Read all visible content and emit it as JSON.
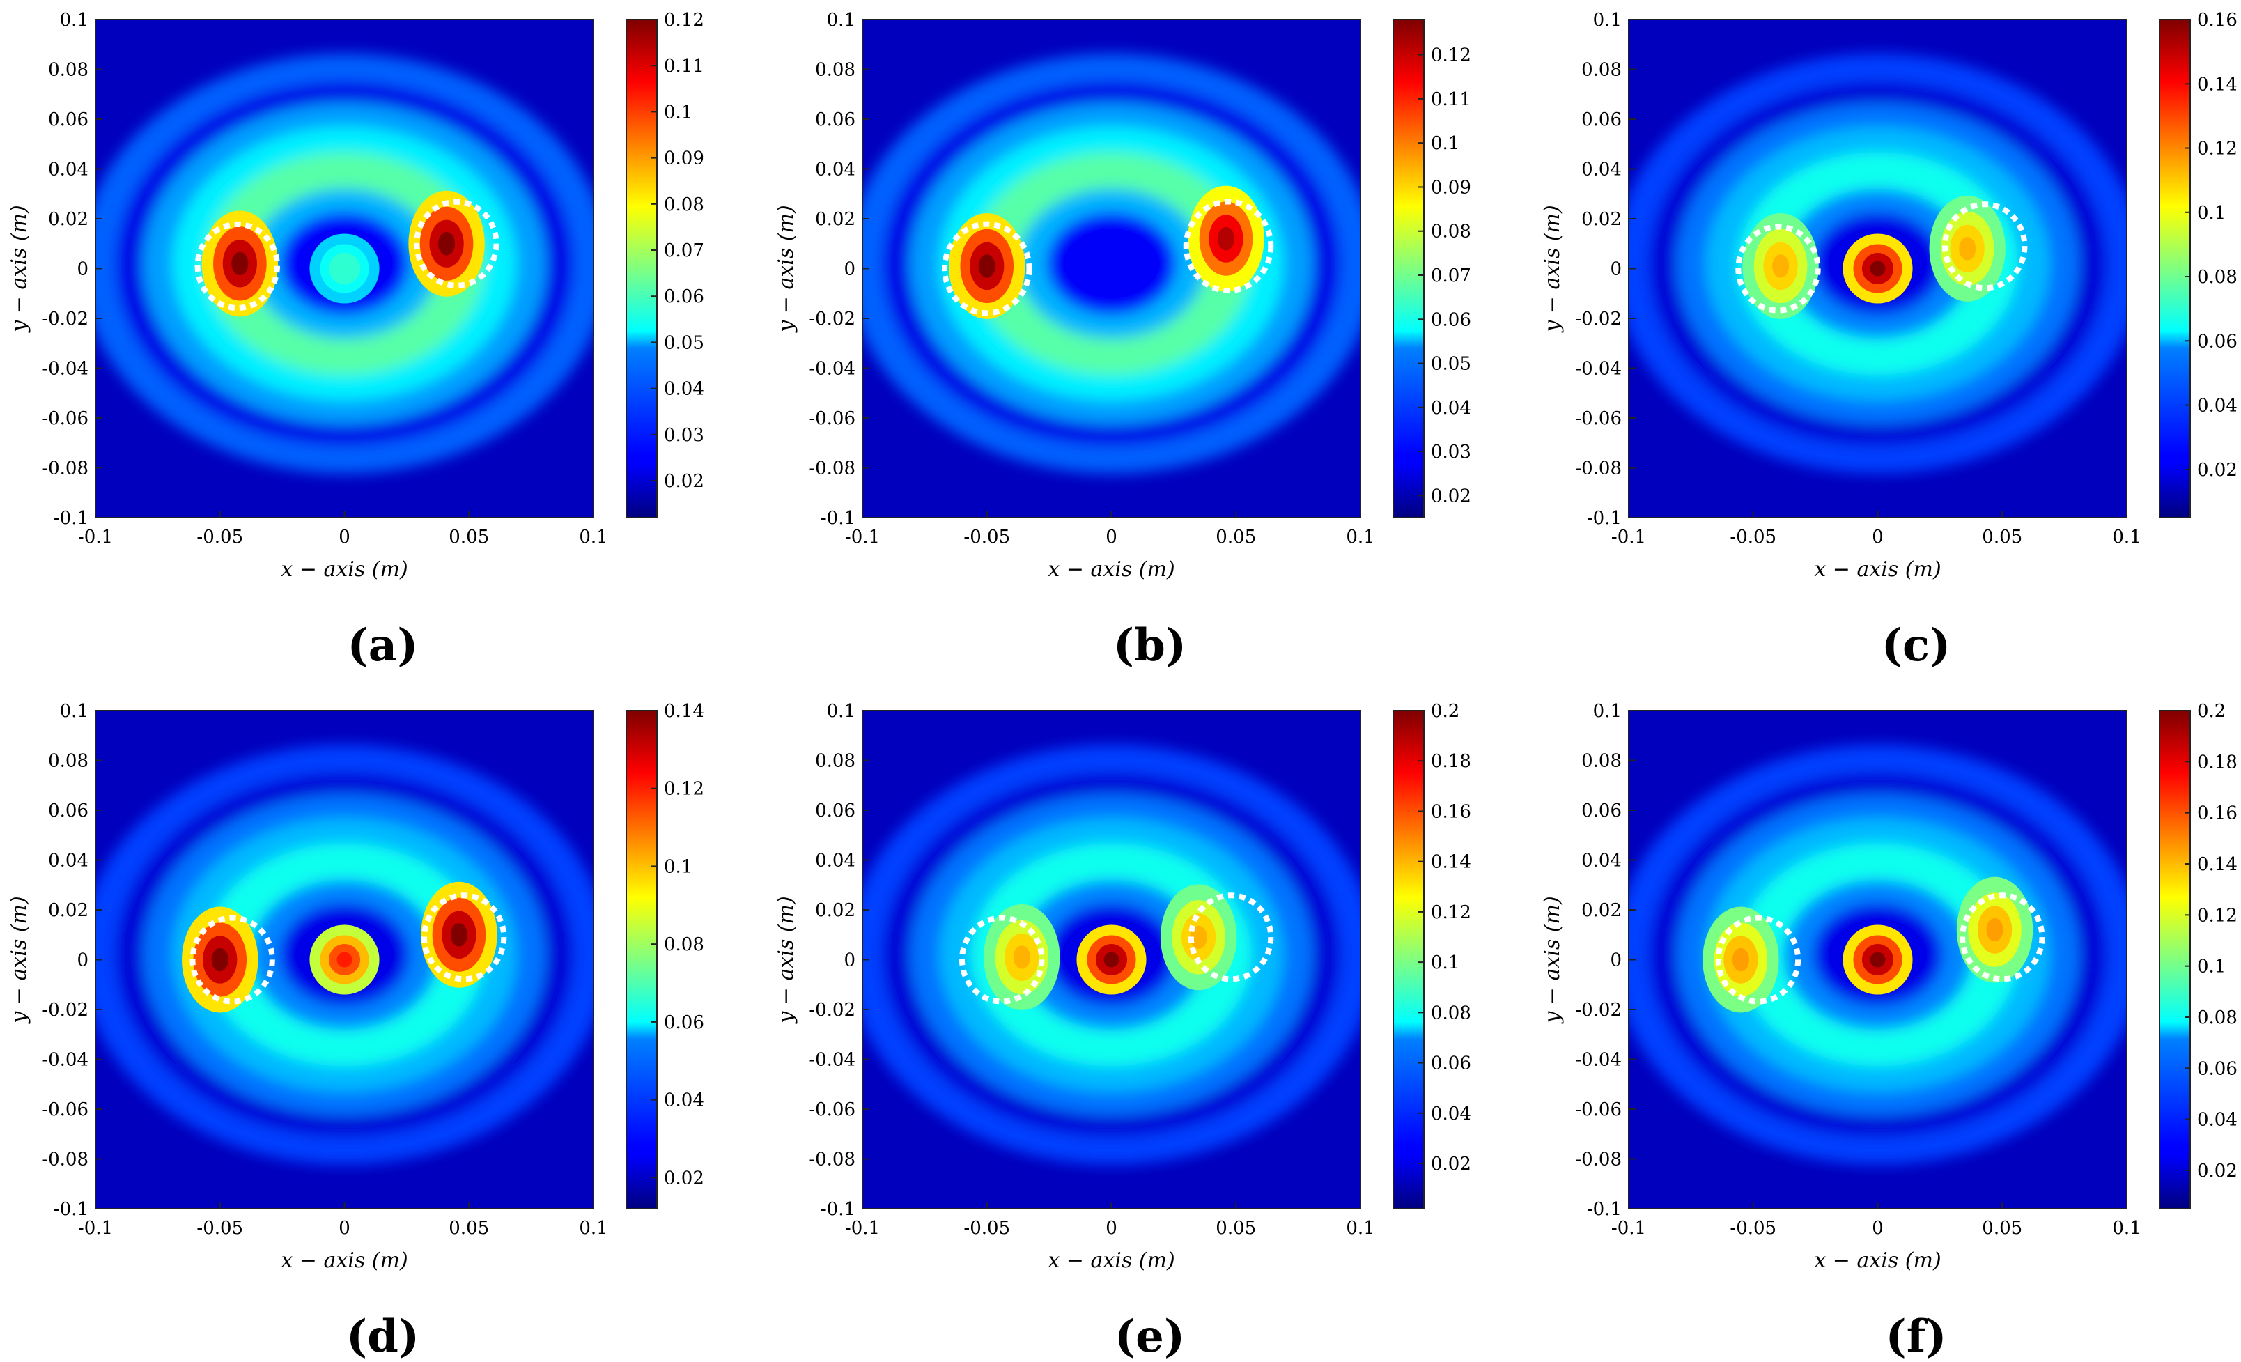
{
  "chart_data": [
    {
      "type": "heatmap",
      "panel_label": "(a)",
      "xlabel": "x − axis (m)",
      "ylabel": "y − axis (m)",
      "xlim": [
        -0.1,
        0.1
      ],
      "ylim": [
        -0.1,
        0.1
      ],
      "x_ticks": [
        "-0.1",
        "-0.05",
        "0",
        "0.05",
        "0.1"
      ],
      "y_ticks": [
        "0.1",
        "0.08",
        "0.06",
        "0.04",
        "0.02",
        "0",
        "-0.02",
        "-0.04",
        "-0.06",
        "-0.08",
        "-0.1"
      ],
      "colorbar": {
        "min": 0.012,
        "max": 0.12,
        "ticks": [
          "0.12",
          "0.11",
          "0.1",
          "0.09",
          "0.08",
          "0.07",
          "0.06",
          "0.05",
          "0.04",
          "0.03",
          "0.02"
        ]
      },
      "markers": [
        {
          "x": -0.043,
          "y": 0.001,
          "r": 0.016
        },
        {
          "x": 0.045,
          "y": 0.01,
          "r": 0.016
        }
      ],
      "hotspots": [
        {
          "x": -0.042,
          "y": 0.002,
          "level": 1.0
        },
        {
          "x": 0.041,
          "y": 0.01,
          "level": 1.0
        },
        {
          "x": 0.0,
          "y": 0.0,
          "level": 0.42
        }
      ]
    },
    {
      "type": "heatmap",
      "panel_label": "(b)",
      "xlabel": "x − axis (m)",
      "ylabel": "y − axis (m)",
      "xlim": [
        -0.1,
        0.1
      ],
      "ylim": [
        -0.1,
        0.1
      ],
      "x_ticks": [
        "-0.1",
        "-0.05",
        "0",
        "0.05",
        "0.1"
      ],
      "y_ticks": [
        "0.1",
        "0.08",
        "0.06",
        "0.04",
        "0.02",
        "0",
        "-0.02",
        "-0.04",
        "-0.06",
        "-0.08",
        "-0.1"
      ],
      "colorbar": {
        "min": 0.015,
        "max": 0.128,
        "ticks": [
          "0.12",
          "0.11",
          "0.1",
          "0.09",
          "0.08",
          "0.07",
          "0.06",
          "0.05",
          "0.04",
          "0.03",
          "0.02"
        ]
      },
      "markers": [
        {
          "x": -0.05,
          "y": 0.0,
          "r": 0.017
        },
        {
          "x": 0.047,
          "y": 0.009,
          "r": 0.017
        }
      ],
      "hotspots": [
        {
          "x": -0.05,
          "y": 0.001,
          "level": 1.0
        },
        {
          "x": 0.046,
          "y": 0.012,
          "level": 0.95
        }
      ]
    },
    {
      "type": "heatmap",
      "panel_label": "(c)",
      "xlabel": "x − axis (m)",
      "ylabel": "y − axis (m)",
      "xlim": [
        -0.1,
        0.1
      ],
      "ylim": [
        -0.1,
        0.1
      ],
      "x_ticks": [
        "-0.1",
        "-0.05",
        "0",
        "0.05",
        "0.1"
      ],
      "y_ticks": [
        "0.1",
        "0.08",
        "0.06",
        "0.04",
        "0.02",
        "0",
        "-0.02",
        "-0.04",
        "-0.06",
        "-0.08",
        "-0.1"
      ],
      "colorbar": {
        "min": 0.005,
        "max": 0.16,
        "ticks": [
          "0.16",
          "0.14",
          "0.12",
          "0.1",
          "0.08",
          "0.06",
          "0.04",
          "0.02"
        ]
      },
      "markers": [
        {
          "x": -0.04,
          "y": 0.0,
          "r": 0.016
        },
        {
          "x": 0.043,
          "y": 0.009,
          "r": 0.016
        }
      ],
      "hotspots": [
        {
          "x": 0.0,
          "y": 0.0,
          "level": 1.0
        },
        {
          "x": -0.039,
          "y": 0.001,
          "level": 0.7
        },
        {
          "x": 0.036,
          "y": 0.008,
          "level": 0.7
        }
      ]
    },
    {
      "type": "heatmap",
      "panel_label": "(d)",
      "xlabel": "x − axis (m)",
      "ylabel": "y − axis (m)",
      "xlim": [
        -0.1,
        0.1
      ],
      "ylim": [
        -0.1,
        0.1
      ],
      "x_ticks": [
        "-0.1",
        "-0.05",
        "0",
        "0.05",
        "0.1"
      ],
      "y_ticks": [
        "0.1",
        "0.08",
        "0.06",
        "0.04",
        "0.02",
        "0",
        "-0.02",
        "-0.04",
        "-0.06",
        "-0.08",
        "-0.1"
      ],
      "colorbar": {
        "min": 0.012,
        "max": 0.14,
        "ticks": [
          "0.14",
          "0.12",
          "0.1",
          "0.08",
          "0.06",
          "0.04",
          "0.02"
        ]
      },
      "markers": [
        {
          "x": -0.045,
          "y": 0.0,
          "r": 0.016
        },
        {
          "x": 0.048,
          "y": 0.009,
          "r": 0.016
        }
      ],
      "hotspots": [
        {
          "x": -0.05,
          "y": 0.0,
          "level": 1.0
        },
        {
          "x": 0.046,
          "y": 0.01,
          "level": 1.0
        },
        {
          "x": 0.0,
          "y": 0.0,
          "level": 0.85
        }
      ]
    },
    {
      "type": "heatmap",
      "panel_label": "(e)",
      "xlabel": "x − axis (m)",
      "ylabel": "y − axis (m)",
      "xlim": [
        -0.1,
        0.1
      ],
      "ylim": [
        -0.1,
        0.1
      ],
      "x_ticks": [
        "-0.1",
        "-0.05",
        "0",
        "0.05",
        "0.1"
      ],
      "y_ticks": [
        "0.1",
        "0.08",
        "0.06",
        "0.04",
        "0.02",
        "0",
        "-0.02",
        "-0.04",
        "-0.06",
        "-0.08",
        "-0.1"
      ],
      "colorbar": {
        "min": 0.002,
        "max": 0.2,
        "ticks": [
          "0.2",
          "0.18",
          "0.16",
          "0.14",
          "0.12",
          "0.1",
          "0.08",
          "0.06",
          "0.04",
          "0.02"
        ]
      },
      "markers": [
        {
          "x": -0.044,
          "y": 0.0,
          "r": 0.016
        },
        {
          "x": 0.048,
          "y": 0.009,
          "r": 0.016
        }
      ],
      "hotspots": [
        {
          "x": 0.0,
          "y": 0.0,
          "level": 1.0
        },
        {
          "x": -0.036,
          "y": 0.001,
          "level": 0.7
        },
        {
          "x": 0.035,
          "y": 0.009,
          "level": 0.7
        }
      ]
    },
    {
      "type": "heatmap",
      "panel_label": "(f)",
      "xlabel": "x − axis (m)",
      "ylabel": "y − axis (m)",
      "xlim": [
        -0.1,
        0.1
      ],
      "ylim": [
        -0.1,
        0.1
      ],
      "x_ticks": [
        "-0.1",
        "-0.05",
        "0",
        "0.05",
        "0.1"
      ],
      "y_ticks": [
        "0.1",
        "0.08",
        "0.06",
        "0.04",
        "0.02",
        "0",
        "-0.02",
        "-0.04",
        "-0.06",
        "-0.08",
        "-0.1"
      ],
      "colorbar": {
        "min": 0.005,
        "max": 0.2,
        "ticks": [
          "0.2",
          "0.18",
          "0.16",
          "0.14",
          "0.12",
          "0.1",
          "0.08",
          "0.06",
          "0.04",
          "0.02"
        ]
      },
      "markers": [
        {
          "x": -0.048,
          "y": 0.0,
          "r": 0.016
        },
        {
          "x": 0.05,
          "y": 0.009,
          "r": 0.016
        }
      ],
      "hotspots": [
        {
          "x": 0.0,
          "y": 0.0,
          "level": 1.0
        },
        {
          "x": -0.055,
          "y": 0.0,
          "level": 0.72
        },
        {
          "x": 0.047,
          "y": 0.012,
          "level": 0.72
        }
      ]
    }
  ]
}
